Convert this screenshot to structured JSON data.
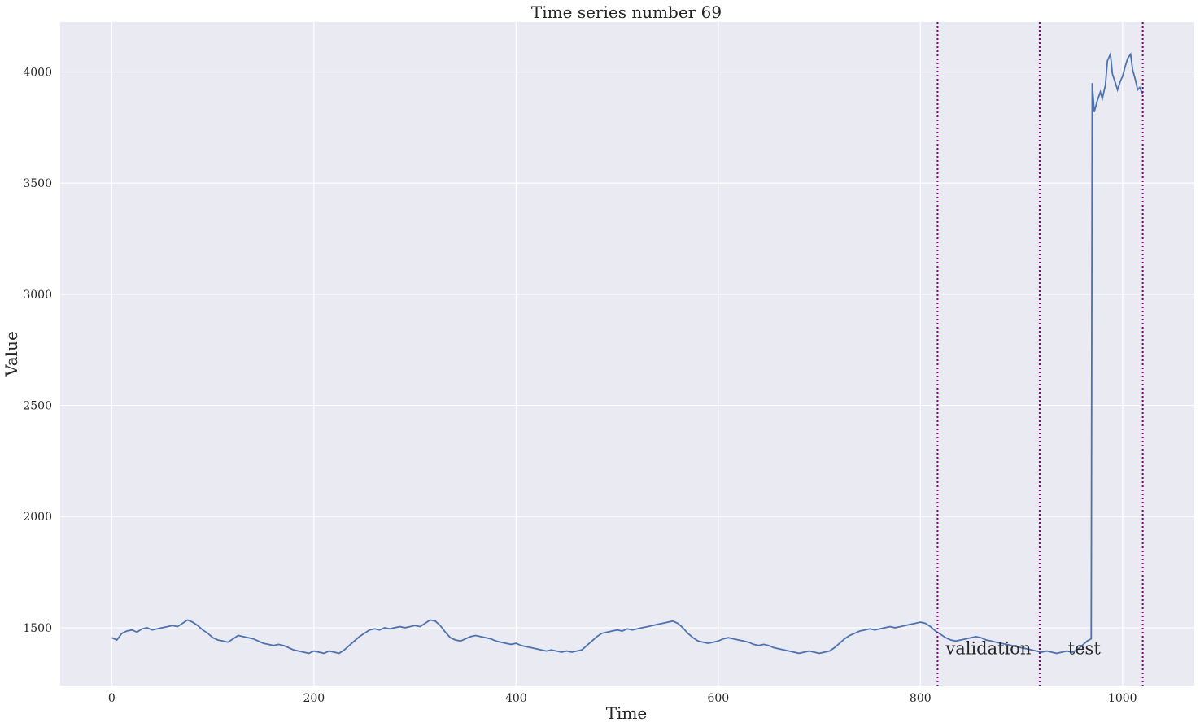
{
  "chart_data": {
    "type": "line",
    "title": "Time series number 69",
    "xlabel": "Time",
    "ylabel": "Value",
    "xlim": [
      -51,
      1071
    ],
    "ylim": [
      1240,
      4225
    ],
    "xticks": [
      0,
      200,
      400,
      600,
      800,
      1000
    ],
    "yticks": [
      1500,
      2000,
      2500,
      3000,
      3500,
      4000
    ],
    "grid": true,
    "background": "#eaeaf2",
    "grid_color": "#ffffff",
    "line_color": "#4c72b0",
    "vline_color": "#800080",
    "vlines": [
      817,
      918,
      1020
    ],
    "annotations": [
      {
        "text": "validation",
        "x": 825,
        "y": 1380
      },
      {
        "text": "test",
        "x": 946,
        "y": 1380
      }
    ],
    "series": [
      {
        "x": [
          0,
          5,
          10,
          15,
          20,
          25,
          30,
          35,
          40,
          45,
          50,
          55,
          60,
          65,
          70,
          75,
          80,
          85,
          90,
          95,
          100,
          105,
          110,
          115,
          120,
          125,
          130,
          135,
          140,
          145,
          150,
          155,
          160,
          165,
          170,
          175,
          180,
          185,
          190,
          195,
          200,
          205,
          210,
          215,
          220,
          225,
          230,
          235,
          240,
          245,
          250,
          255,
          260,
          265,
          270,
          275,
          280,
          285,
          290,
          295,
          300,
          305,
          310,
          315,
          320,
          325,
          330,
          335,
          340,
          345,
          350,
          355,
          360,
          365,
          370,
          375,
          380,
          385,
          390,
          395,
          400,
          405,
          410,
          415,
          420,
          425,
          430,
          435,
          440,
          445,
          450,
          455,
          460,
          465,
          470,
          475,
          480,
          485,
          490,
          495,
          500,
          505,
          510,
          515,
          520,
          525,
          530,
          535,
          540,
          545,
          550,
          555,
          560,
          565,
          570,
          575,
          580,
          585,
          590,
          595,
          600,
          605,
          610,
          615,
          620,
          625,
          630,
          635,
          640,
          645,
          650,
          655,
          660,
          665,
          670,
          675,
          680,
          685,
          690,
          695,
          700,
          705,
          710,
          715,
          720,
          725,
          730,
          735,
          740,
          745,
          750,
          755,
          760,
          765,
          770,
          775,
          780,
          785,
          790,
          795,
          800,
          805,
          810,
          815,
          820,
          825,
          830,
          835,
          840,
          845,
          850,
          855,
          860,
          865,
          870,
          875,
          880,
          885,
          890,
          895,
          900,
          905,
          910,
          915,
          920,
          925,
          930,
          935,
          940,
          945,
          950,
          955,
          960,
          965,
          969,
          970,
          972,
          975,
          978,
          980,
          983,
          985,
          988,
          990,
          993,
          995,
          998,
          1000,
          1003,
          1005,
          1008,
          1010,
          1013,
          1015,
          1017,
          1019,
          1020
        ],
        "values": [
          1455,
          1445,
          1475,
          1485,
          1490,
          1480,
          1495,
          1500,
          1490,
          1495,
          1500,
          1505,
          1510,
          1505,
          1520,
          1535,
          1525,
          1510,
          1490,
          1475,
          1455,
          1445,
          1440,
          1435,
          1450,
          1465,
          1460,
          1455,
          1450,
          1440,
          1430,
          1425,
          1420,
          1425,
          1420,
          1410,
          1400,
          1395,
          1390,
          1385,
          1395,
          1390,
          1385,
          1395,
          1390,
          1385,
          1400,
          1420,
          1440,
          1460,
          1475,
          1490,
          1495,
          1490,
          1500,
          1495,
          1500,
          1505,
          1500,
          1505,
          1510,
          1505,
          1520,
          1535,
          1530,
          1510,
          1480,
          1455,
          1445,
          1440,
          1450,
          1460,
          1465,
          1460,
          1455,
          1450,
          1440,
          1435,
          1430,
          1425,
          1430,
          1420,
          1415,
          1410,
          1405,
          1400,
          1395,
          1400,
          1395,
          1390,
          1395,
          1390,
          1395,
          1400,
          1420,
          1440,
          1460,
          1475,
          1480,
          1485,
          1490,
          1485,
          1495,
          1490,
          1495,
          1500,
          1505,
          1510,
          1515,
          1520,
          1525,
          1530,
          1520,
          1500,
          1475,
          1455,
          1440,
          1435,
          1430,
          1435,
          1440,
          1450,
          1455,
          1450,
          1445,
          1440,
          1435,
          1425,
          1420,
          1425,
          1420,
          1410,
          1405,
          1400,
          1395,
          1390,
          1385,
          1390,
          1395,
          1390,
          1385,
          1390,
          1395,
          1410,
          1430,
          1450,
          1465,
          1475,
          1485,
          1490,
          1495,
          1490,
          1495,
          1500,
          1505,
          1500,
          1505,
          1510,
          1515,
          1520,
          1525,
          1520,
          1505,
          1485,
          1470,
          1455,
          1445,
          1440,
          1445,
          1450,
          1455,
          1460,
          1455,
          1445,
          1440,
          1435,
          1430,
          1425,
          1420,
          1415,
          1410,
          1405,
          1400,
          1395,
          1390,
          1395,
          1390,
          1385,
          1390,
          1395,
          1390,
          1400,
          1420,
          1440,
          1450,
          3950,
          3820,
          3870,
          3910,
          3880,
          3940,
          4050,
          4080,
          3990,
          3950,
          3920,
          3960,
          3980,
          4030,
          4060,
          4080,
          4010,
          3960,
          3920,
          3930,
          3910,
          3900
        ]
      }
    ]
  }
}
